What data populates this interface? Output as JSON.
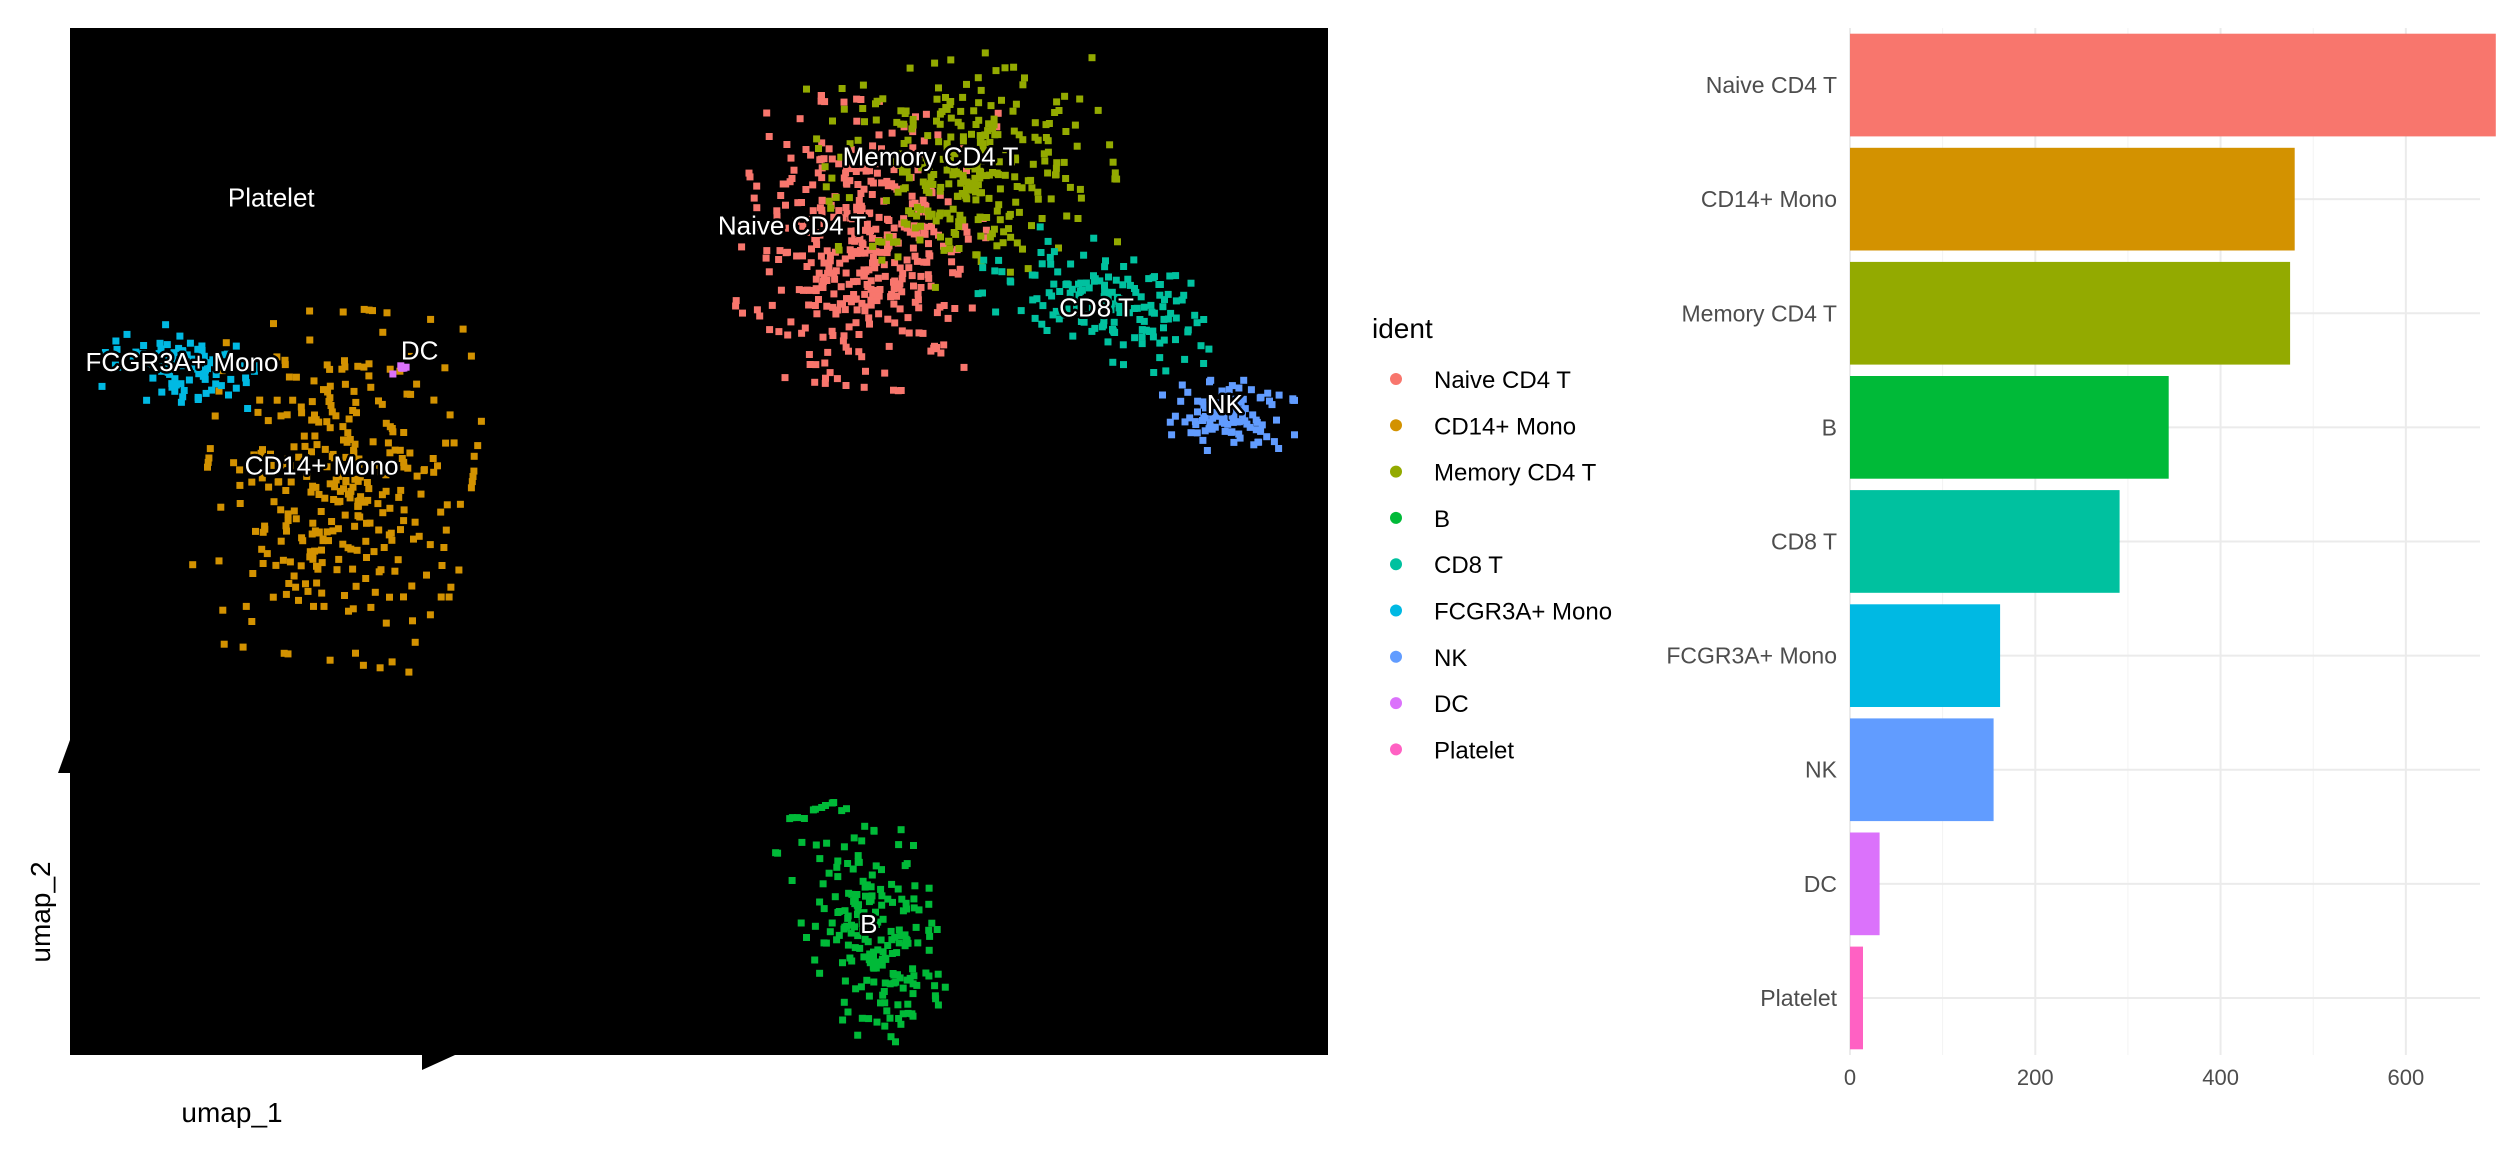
{
  "chart_data": [
    {
      "type": "scatter",
      "title": "",
      "xlabel": "umap_1",
      "ylabel": "umap_2",
      "panel_background": "#000000",
      "clusters": [
        {
          "name": "Naive CD4 T",
          "label_x": 0.574,
          "label_y": 0.799,
          "n_points": 420
        },
        {
          "name": "Memory CD4 T",
          "label_x": 0.684,
          "label_y": 0.866,
          "n_points": 300
        },
        {
          "name": "CD8 T",
          "label_x": 0.816,
          "label_y": 0.719,
          "n_points": 160
        },
        {
          "name": "NK",
          "label_x": 0.918,
          "label_y": 0.625,
          "n_points": 100
        },
        {
          "name": "B",
          "label_x": 0.635,
          "label_y": 0.119,
          "n_points": 220
        },
        {
          "name": "CD14+ Mono",
          "label_x": 0.2,
          "label_y": 0.565,
          "n_points": 330
        },
        {
          "name": "FCGR3A+ Mono",
          "label_x": 0.089,
          "label_y": 0.666,
          "n_points": 90
        },
        {
          "name": "DC",
          "label_x": 0.278,
          "label_y": 0.677,
          "n_points": 6
        },
        {
          "name": "Platelet",
          "label_x": 0.16,
          "label_y": 0.826,
          "n_points": 0
        }
      ]
    },
    {
      "type": "bar",
      "orientation": "horizontal",
      "title": "",
      "xlabel": "",
      "ylabel": "",
      "categories": [
        "Naive CD4 T",
        "CD14+ Mono",
        "Memory CD4 T",
        "B",
        "CD8 T",
        "FCGR3A+ Mono",
        "NK",
        "DC",
        "Platelet"
      ],
      "values": [
        697,
        480,
        475,
        344,
        291,
        162,
        155,
        32,
        14
      ],
      "xlim": [
        0,
        680
      ],
      "xticks": [
        "0",
        "200",
        "400",
        "600"
      ],
      "grid": true
    }
  ],
  "legend": {
    "title": "ident",
    "placement": "between panels",
    "items": [
      {
        "label": "Naive CD4 T",
        "color": "#F8766D"
      },
      {
        "label": "CD14+ Mono",
        "color": "#D39200"
      },
      {
        "label": "Memory CD4 T",
        "color": "#93AA00"
      },
      {
        "label": "B",
        "color": "#00BA38"
      },
      {
        "label": "CD8 T",
        "color": "#00C19F"
      },
      {
        "label": "FCGR3A+ Mono",
        "color": "#00B9E3"
      },
      {
        "label": "NK",
        "color": "#619CFF"
      },
      {
        "label": "DC",
        "color": "#DB72FB"
      },
      {
        "label": "Platelet",
        "color": "#FF61C3"
      }
    ]
  }
}
